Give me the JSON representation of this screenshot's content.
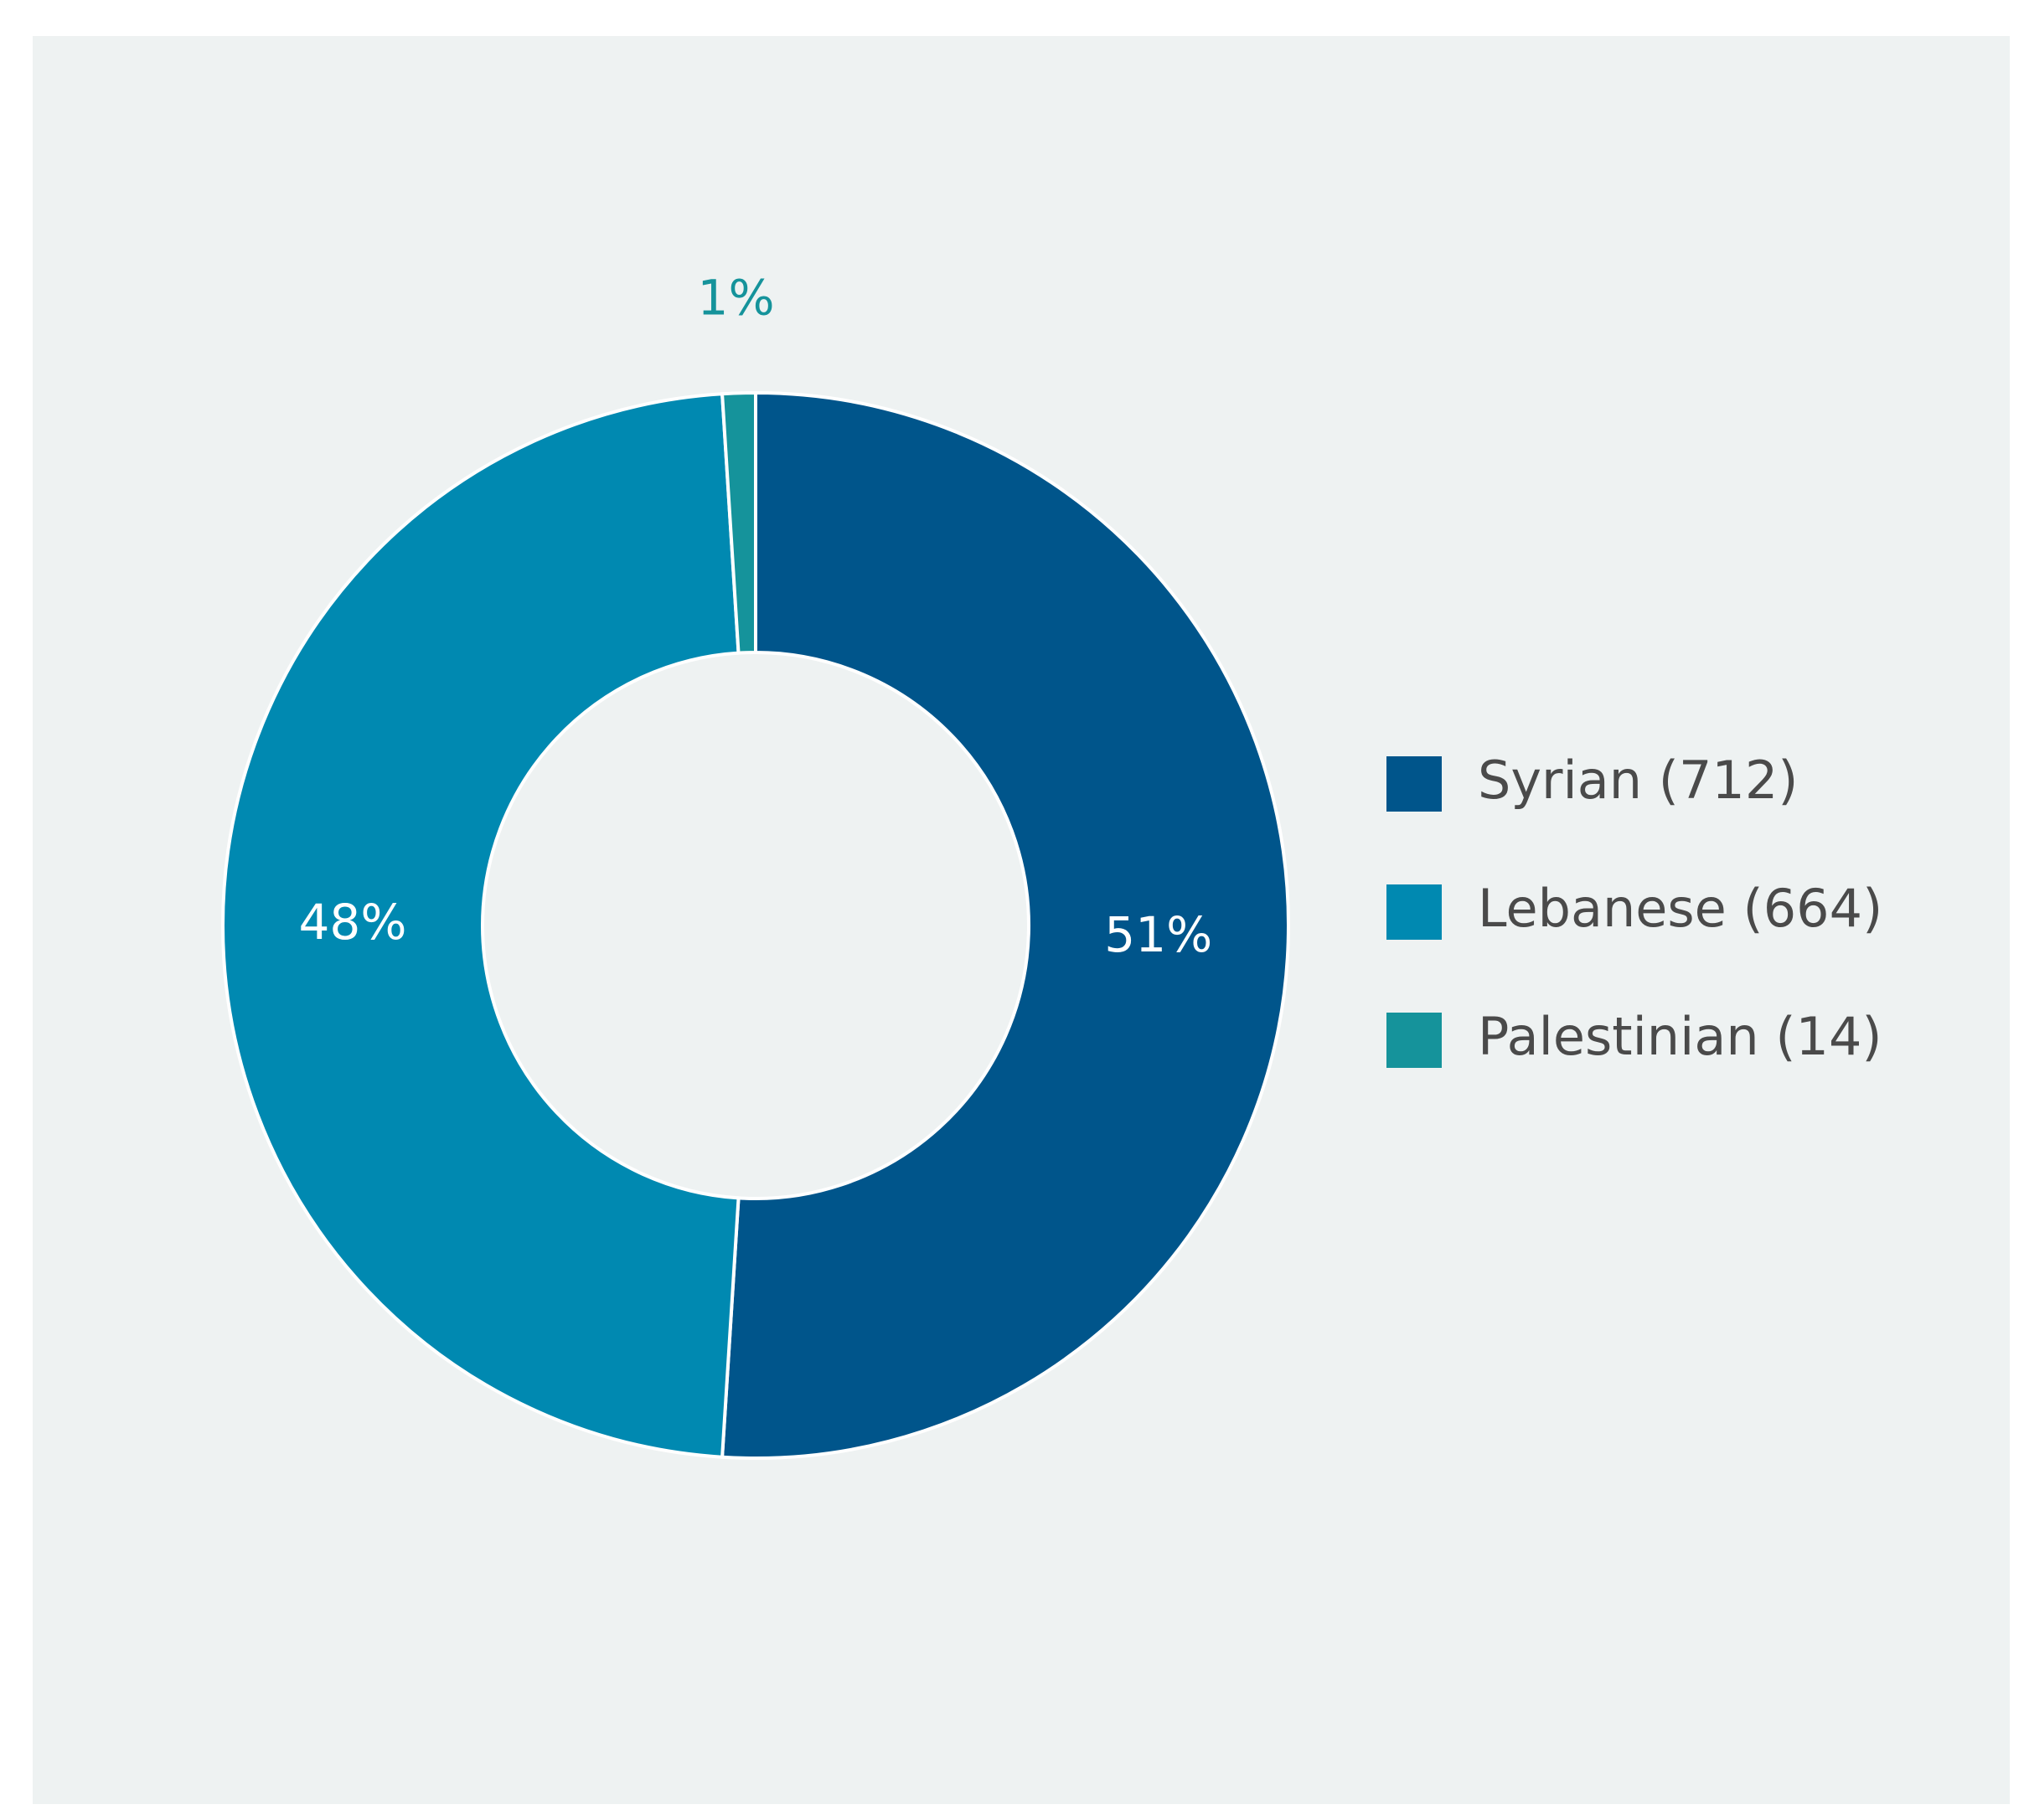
{
  "chart_data": {
    "type": "donut",
    "categories": [
      "Syrian (712)",
      "Lebanese (664)",
      "Palestinian (14)"
    ],
    "values": [
      51,
      48,
      1
    ],
    "value_labels": [
      "51%",
      "48%",
      "1%"
    ],
    "colors": [
      "#00558b",
      "#0089b1",
      "#15939b"
    ],
    "legend": "right"
  }
}
